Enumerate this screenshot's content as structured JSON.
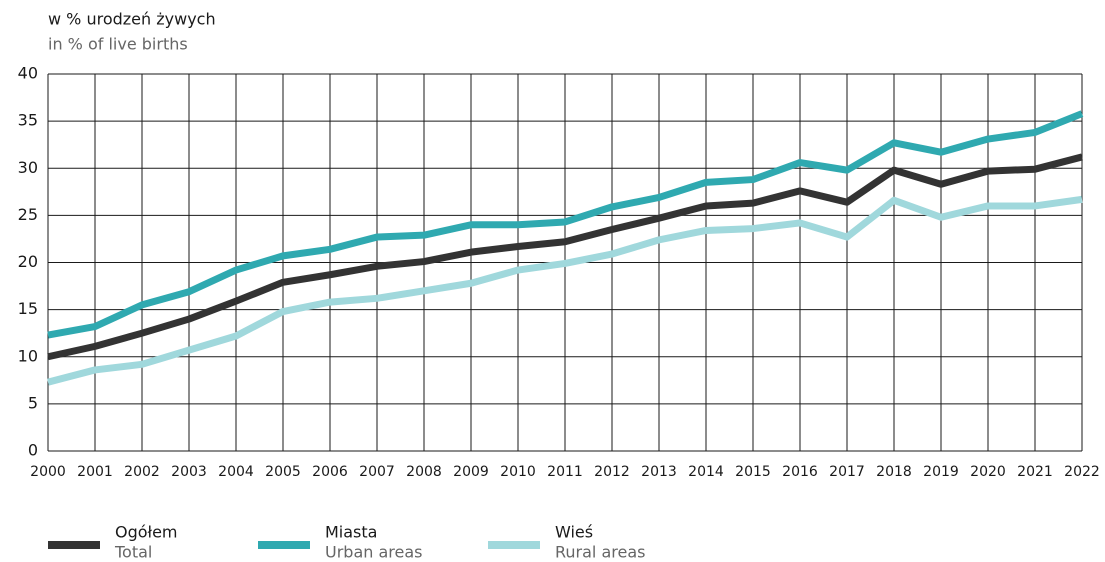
{
  "chart_data": {
    "type": "line",
    "y_label": "w % urodzeń żywych",
    "y_label_en": "in % of live births",
    "x": [
      2000,
      2001,
      2002,
      2003,
      2004,
      2005,
      2006,
      2007,
      2008,
      2009,
      2010,
      2011,
      2012,
      2013,
      2014,
      2015,
      2016,
      2017,
      2018,
      2019,
      2020,
      2021,
      2022
    ],
    "xlim": [
      2000,
      2022
    ],
    "ylim": [
      0,
      40
    ],
    "yticks": [
      0,
      5,
      10,
      15,
      20,
      25,
      30,
      35,
      40
    ],
    "grid": true,
    "series": [
      {
        "name": "Ogółem",
        "name_en": "Total",
        "color": "#333333",
        "values": [
          10.0,
          11.1,
          12.5,
          14.0,
          15.9,
          17.9,
          18.7,
          19.6,
          20.1,
          21.1,
          21.7,
          22.2,
          23.5,
          24.7,
          26.0,
          26.3,
          27.6,
          26.4,
          29.8,
          28.3,
          29.7,
          29.9,
          31.2
        ]
      },
      {
        "name": "Miasta",
        "name_en": "Urban areas",
        "color": "#2fa9b0",
        "values": [
          12.3,
          13.2,
          15.5,
          16.9,
          19.2,
          20.7,
          21.4,
          22.7,
          22.9,
          24.0,
          24.0,
          24.3,
          25.9,
          26.9,
          28.5,
          28.8,
          30.6,
          29.8,
          32.7,
          31.7,
          33.1,
          33.8,
          35.8
        ]
      },
      {
        "name": "Wieś",
        "name_en": "Rural areas",
        "color": "#a0d8dc",
        "values": [
          7.3,
          8.6,
          9.2,
          10.7,
          12.2,
          14.8,
          15.8,
          16.2,
          17.0,
          17.8,
          19.2,
          19.9,
          20.9,
          22.4,
          23.4,
          23.6,
          24.2,
          22.7,
          26.6,
          24.8,
          26.0,
          26.0,
          26.7
        ]
      }
    ]
  }
}
